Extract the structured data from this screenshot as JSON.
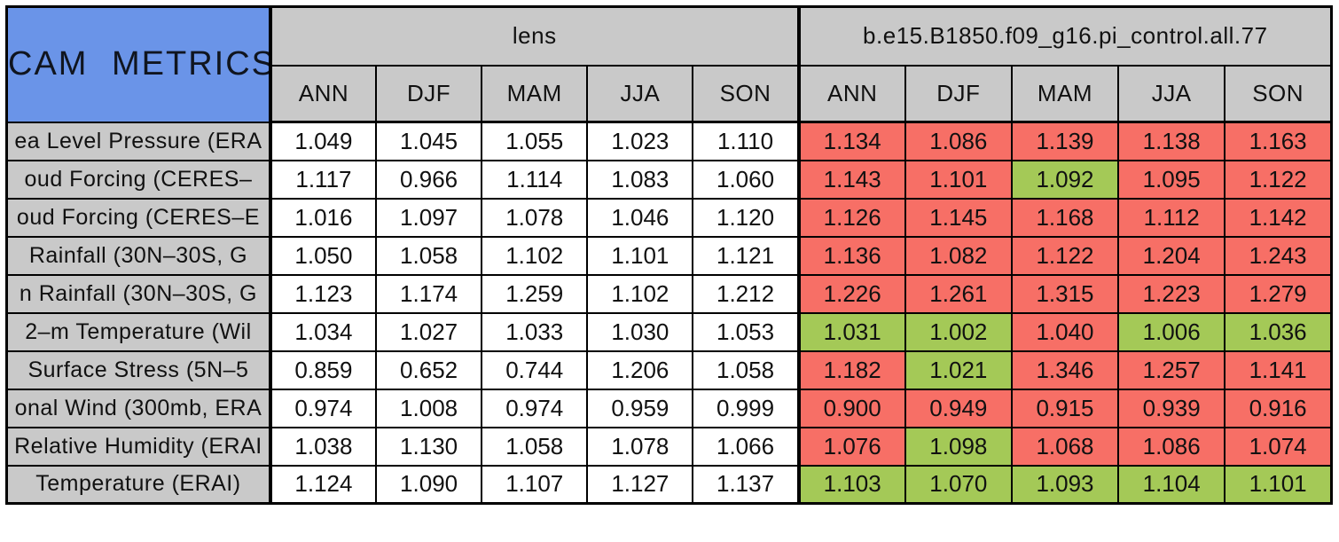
{
  "colors": {
    "corner_bg": "#6A94E8",
    "header_bg": "#C9C9C9",
    "label_bg": "#C9C9C9",
    "value_bg": "#FFFFFF",
    "worse_bg": "#F76F66",
    "better_bg": "#A4C957",
    "border": "#000000",
    "text": "#111111"
  },
  "chart_data": {
    "type": "table",
    "title": "CAM METRICS",
    "groups": [
      {
        "name": "lens"
      },
      {
        "name": "b.e15.B1850.f09_g16.pi_control.all.77"
      }
    ],
    "seasons": [
      "ANN",
      "DJF",
      "MAM",
      "JJA",
      "SON"
    ],
    "rows": [
      {
        "metric": "ea Level Pressure (ERA",
        "lens": [
          1.049,
          1.045,
          1.055,
          1.023,
          1.11
        ],
        "control": [
          1.134,
          1.086,
          1.139,
          1.138,
          1.163
        ],
        "control_status": [
          "worse",
          "worse",
          "worse",
          "worse",
          "worse"
        ]
      },
      {
        "metric": "oud Forcing (CERES–",
        "lens": [
          1.117,
          0.966,
          1.114,
          1.083,
          1.06
        ],
        "control": [
          1.143,
          1.101,
          1.092,
          1.095,
          1.122
        ],
        "control_status": [
          "worse",
          "worse",
          "better",
          "worse",
          "worse"
        ]
      },
      {
        "metric": "oud Forcing (CERES–E",
        "lens": [
          1.016,
          1.097,
          1.078,
          1.046,
          1.12
        ],
        "control": [
          1.126,
          1.145,
          1.168,
          1.112,
          1.142
        ],
        "control_status": [
          "worse",
          "worse",
          "worse",
          "worse",
          "worse"
        ]
      },
      {
        "metric": "Rainfall (30N–30S, G",
        "lens": [
          1.05,
          1.058,
          1.102,
          1.101,
          1.121
        ],
        "control": [
          1.136,
          1.082,
          1.122,
          1.204,
          1.243
        ],
        "control_status": [
          "worse",
          "worse",
          "worse",
          "worse",
          "worse"
        ]
      },
      {
        "metric": "n Rainfall (30N–30S, G",
        "lens": [
          1.123,
          1.174,
          1.259,
          1.102,
          1.212
        ],
        "control": [
          1.226,
          1.261,
          1.315,
          1.223,
          1.279
        ],
        "control_status": [
          "worse",
          "worse",
          "worse",
          "worse",
          "worse"
        ]
      },
      {
        "metric": "2–m Temperature (Wil",
        "lens": [
          1.034,
          1.027,
          1.033,
          1.03,
          1.053
        ],
        "control": [
          1.031,
          1.002,
          1.04,
          1.006,
          1.036
        ],
        "control_status": [
          "better",
          "better",
          "worse",
          "better",
          "better"
        ]
      },
      {
        "metric": "Surface Stress (5N–5",
        "lens": [
          0.859,
          0.652,
          0.744,
          1.206,
          1.058
        ],
        "control": [
          1.182,
          1.021,
          1.346,
          1.257,
          1.141
        ],
        "control_status": [
          "worse",
          "better",
          "worse",
          "worse",
          "worse"
        ]
      },
      {
        "metric": "onal Wind (300mb, ERA",
        "lens": [
          0.974,
          1.008,
          0.974,
          0.959,
          0.999
        ],
        "control": [
          0.9,
          0.949,
          0.915,
          0.939,
          0.916
        ],
        "control_status": [
          "worse",
          "worse",
          "worse",
          "worse",
          "worse"
        ]
      },
      {
        "metric": "Relative Humidity (ERAI",
        "lens": [
          1.038,
          1.13,
          1.058,
          1.078,
          1.066
        ],
        "control": [
          1.076,
          1.098,
          1.068,
          1.086,
          1.074
        ],
        "control_status": [
          "worse",
          "better",
          "worse",
          "worse",
          "worse"
        ]
      },
      {
        "metric": "Temperature (ERAI)",
        "lens": [
          1.124,
          1.09,
          1.107,
          1.127,
          1.137
        ],
        "control": [
          1.103,
          1.07,
          1.093,
          1.104,
          1.101
        ],
        "control_status": [
          "better",
          "better",
          "better",
          "better",
          "better"
        ]
      }
    ]
  }
}
